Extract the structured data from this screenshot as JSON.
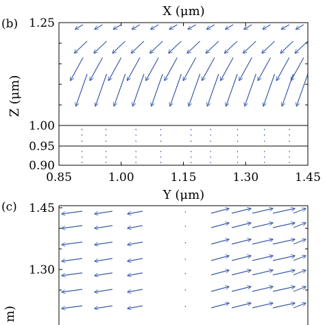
{
  "chart_data": [
    {
      "panel_label": "(b)",
      "type": "quiver",
      "top_xlabel": "X (μm)",
      "xlabel": "Y (μm)",
      "ylabel": "Z (μm)",
      "xlim": [
        0.85,
        1.45
      ],
      "ylim": [
        0.9,
        1.25
      ],
      "xticks": [
        "0.85",
        "1.00",
        "1.15",
        "1.30",
        "1.45"
      ],
      "yticks": [
        "1.25",
        "1.00",
        "0.95",
        "0.90"
      ],
      "interfaces": [
        1.0,
        0.95
      ],
      "arrow_color": "#3a5ba8",
      "fields": [
        {
          "y0": 1.245,
          "rows": 1,
          "dy": 0.0,
          "dx": -0.055,
          "dz": -0.018
        },
        {
          "y0": 1.2,
          "dx": -0.05,
          "dz": -0.04
        },
        {
          "y0": 1.16,
          "dx": -0.04,
          "dz": -0.06
        },
        {
          "y0": 1.12,
          "dx": -0.025,
          "dz": -0.085
        },
        {
          "y0": 1.08,
          "dx": -0.015,
          "dz": -0.1
        }
      ],
      "arrow_columns": [
        0.868,
        0.908,
        0.955,
        1.0,
        1.045,
        1.09,
        1.135,
        1.18,
        1.225,
        1.27,
        1.315,
        1.36,
        1.405,
        1.44
      ],
      "lower_dots_columns": [
        0.905,
        0.963,
        1.035,
        1.095,
        1.168,
        1.215,
        1.28,
        1.345,
        1.405
      ]
    },
    {
      "panel_label": "(c)",
      "type": "quiver",
      "ylabel": "m)",
      "ylim_top": 1.45,
      "yticks": [
        "1.45",
        "1.30"
      ],
      "arrow_color": "#3a5ba8",
      "rows_y": [
        1.445,
        1.41,
        1.37,
        1.33,
        1.295,
        1.255,
        1.215
      ],
      "left_columns": [
        0.875,
        0.925,
        0.975,
        1.025,
        1.075
      ],
      "right_columns": [
        1.2,
        1.26,
        1.32,
        1.38,
        1.43
      ]
    }
  ]
}
